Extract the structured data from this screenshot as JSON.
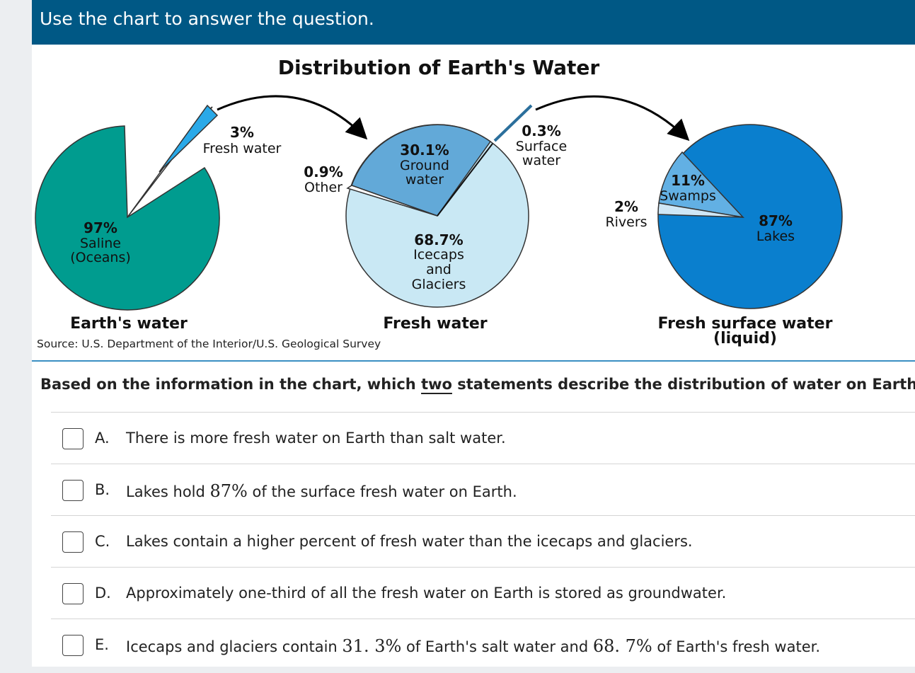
{
  "header": {
    "instruction": "Use the chart to answer the question."
  },
  "chart_data": {
    "type": "pie",
    "title": "Distribution of Earth's Water",
    "source": "Source: U.S. Department of the Interior/U.S. Geological Survey",
    "charts": [
      {
        "caption": "Earth's water",
        "slices": [
          {
            "percent_label": "97%",
            "label_lines": [
              "Saline",
              "(Oceans)"
            ],
            "value": 97,
            "color": "#009c8f"
          },
          {
            "percent_label": "3%",
            "label_lines": [
              "Fresh water"
            ],
            "value": 3,
            "color": "#2aa9e8"
          }
        ]
      },
      {
        "caption": "Fresh water",
        "slices": [
          {
            "percent_label": "68.7%",
            "label_lines": [
              "Icecaps",
              "and",
              "Glaciers"
            ],
            "value": 68.7,
            "color": "#c9e8f4"
          },
          {
            "percent_label": "30.1%",
            "label_lines": [
              "Ground",
              "water"
            ],
            "value": 30.1,
            "color": "#62a9d8"
          },
          {
            "percent_label": "0.9%",
            "label_lines": [
              "Other"
            ],
            "value": 0.9,
            "color": "#ffffff"
          },
          {
            "percent_label": "0.3%",
            "label_lines": [
              "Surface",
              "water"
            ],
            "value": 0.3,
            "color": "#2aa9e8"
          }
        ]
      },
      {
        "caption_lines": [
          "Fresh surface water",
          "(liquid)"
        ],
        "slices": [
          {
            "percent_label": "87%",
            "label_lines": [
              "Lakes"
            ],
            "value": 87,
            "color": "#0a7fce"
          },
          {
            "percent_label": "11%",
            "label_lines": [
              "Swamps"
            ],
            "value": 11,
            "color": "#62b0e4"
          },
          {
            "percent_label": "2%",
            "label_lines": [
              "Rivers"
            ],
            "value": 2,
            "color": "#cfe7f6"
          }
        ]
      }
    ]
  },
  "question": {
    "prefix": "Based on the information in the chart, which ",
    "emphasis": "two",
    "suffix": " statements describe the distribution of water on Earth?"
  },
  "choices": [
    {
      "letter": "A.",
      "parts": [
        {
          "t": "There is more fresh water on Earth than salt water."
        }
      ]
    },
    {
      "letter": "B.",
      "parts": [
        {
          "t": "Lakes hold "
        },
        {
          "m": "87%"
        },
        {
          "t": " of the surface fresh water on Earth."
        }
      ]
    },
    {
      "letter": "C.",
      "parts": [
        {
          "t": "Lakes contain a higher percent of fresh water than the icecaps and glaciers."
        }
      ]
    },
    {
      "letter": "D.",
      "parts": [
        {
          "t": "Approximately one-third of all the fresh water on Earth is stored as groundwater."
        }
      ]
    },
    {
      "letter": "E.",
      "parts": [
        {
          "t": "Icecaps and glaciers contain "
        },
        {
          "m": "31. 3%"
        },
        {
          "t": " of Earth's salt water and "
        },
        {
          "m": "68. 7%"
        },
        {
          "t": " of Earth's fresh water."
        }
      ]
    }
  ]
}
